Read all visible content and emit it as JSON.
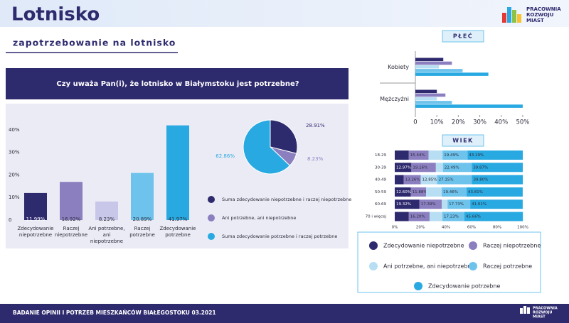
{
  "header": {
    "title": "Lotnisko",
    "subtitle": "zapotrzebowanie na lotnisko",
    "logo": [
      "PRACOWNIA",
      "ROZWOJU",
      "MIAST"
    ]
  },
  "question": "Czy uważa Pan(i), że lotnisko w Białymstoku jest potrzebne?",
  "footer": {
    "text": "BADANIE OPINII I POTRZEB MIESZKAŃCÓW BIAŁEGOSTOKU 03.2021",
    "logo": [
      "PRACOWNIA",
      "ROZWOJU",
      "MIAST"
    ]
  },
  "chart_data": [
    {
      "type": "bar",
      "categories": [
        "Zdecydowanie niepotrzebne",
        "Raczej niepotrzebne",
        "Ani potrzebne, ani niepotrzebne",
        "Raczej potrzebne",
        "Zdecydowanie potrzebne"
      ],
      "values": [
        11.99,
        16.92,
        8.23,
        20.89,
        41.97
      ],
      "value_labels": [
        "11.99%",
        "16.92%",
        "8.23%",
        "20.89%",
        "41.97%"
      ],
      "colors": [
        "#2e2a6e",
        "#8b7fc0",
        "#c9c7e9",
        "#6ec3ec",
        "#29a9e1"
      ],
      "ylim": [
        0,
        45
      ],
      "yticks": [
        0,
        {
          "value": 10,
          "label": "10%"
        },
        {
          "value": 20,
          "label": "20%"
        },
        {
          "value": 30,
          "label": "30%"
        },
        {
          "value": 40,
          "label": "40%"
        }
      ],
      "grid": false
    },
    {
      "type": "pie",
      "categories": [
        "Suma zdecydowanie niepotrzebne i raczej niepotrzebne",
        "Ani potrzebne, ani niepotrzebne",
        "Suma zdecydowanie potrzebne i raczej potrzebne"
      ],
      "values": [
        28.91,
        8.23,
        62.86
      ],
      "value_labels": [
        "28.91%",
        "8.23%",
        "62.86%"
      ],
      "colors": [
        "#2e2a6e",
        "#8b7fc0",
        "#29a9e1"
      ]
    },
    {
      "type": "grouped_hbar",
      "title": "PŁEĆ",
      "categories": [
        "Kobiety",
        "Mężczyźni"
      ],
      "series": [
        {
          "color": "#2e2a6e",
          "values": [
            13,
            10
          ]
        },
        {
          "color": "#8b7fc0",
          "values": [
            17,
            14
          ]
        },
        {
          "color": "#b7def2",
          "values": [
            11,
            10
          ]
        },
        {
          "color": "#6ec3ec",
          "values": [
            22,
            17
          ]
        },
        {
          "color": "#29a9e1",
          "values": [
            34,
            50
          ]
        }
      ],
      "xlim": [
        0,
        55
      ],
      "xticks": [
        0,
        {
          "value": 10,
          "label": "10%"
        },
        {
          "value": 20,
          "label": "20%"
        },
        {
          "value": 30,
          "label": "30%"
        },
        {
          "value": 40,
          "label": "40%"
        },
        {
          "value": 50,
          "label": "50%"
        }
      ]
    },
    {
      "type": "stacked_hbar",
      "title": "WIEK",
      "categories": [
        "18-29",
        "30-39",
        "40-49",
        "50-59",
        "60-69",
        "70 i więcej"
      ],
      "series": [
        {
          "name": "Zdecydowanie niepotrzebne",
          "color": "#2e2a6e",
          "values": [
            11,
            12.97,
            7,
            12.6,
            19.32,
            11
          ],
          "value_labels": [
            null,
            "12.97%",
            null,
            "12.60%",
            "19.32%",
            null
          ]
        },
        {
          "name": "Raczej niepotrzebne",
          "color": "#8b7fc0",
          "values": [
            15.44,
            19.16,
            13.26,
            11.88,
            17.39,
            16.2
          ],
          "value_labels": [
            "15.44%",
            "19.16%",
            "13.26%",
            "11.88%",
            "17.39%",
            "16.20%"
          ]
        },
        {
          "name": "Ani potrzebne, ani niepotrzebne",
          "color": "#b7def2",
          "values": [
            10.9,
            5.5,
            12.85,
            12.2,
            4.5,
            10
          ],
          "value_labels": [
            null,
            null,
            "12.85%",
            null,
            null,
            null
          ]
        },
        {
          "name": "Raczej potrzebne",
          "color": "#6ec3ec",
          "values": [
            19.49,
            22.49,
            27.15,
            19.46,
            17.73,
            17.23
          ],
          "value_labels": [
            "19.49%",
            "22.49%",
            "27.15%",
            "19.46%",
            "17.73%",
            "17.23%"
          ]
        },
        {
          "name": "Zdecydowanie potrzebne",
          "color": "#29a9e1",
          "values": [
            43.19,
            39.87,
            39.8,
            43.81,
            41.01,
            45.66
          ],
          "value_labels": [
            "43.19%",
            "39.87%",
            "39.80%",
            "43.81%",
            "41.01%",
            "45.66%"
          ]
        }
      ],
      "xlim": [
        0,
        100
      ],
      "xticks": [
        {
          "value": 0,
          "label": "0%"
        },
        {
          "value": 20,
          "label": "20%"
        },
        {
          "value": 40,
          "label": "40%"
        },
        {
          "value": 60,
          "label": "60%"
        },
        {
          "value": 80,
          "label": "80%"
        },
        {
          "value": 100,
          "label": "100%"
        }
      ]
    }
  ]
}
